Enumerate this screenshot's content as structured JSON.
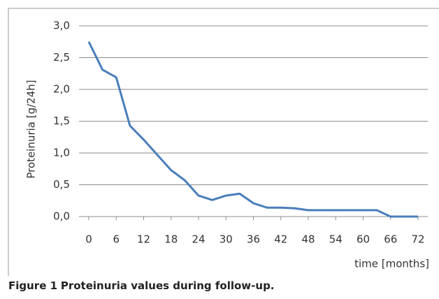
{
  "chart_data": {
    "type": "line",
    "y_label": "Proteinuria [g/24h]",
    "x_label": "time [months]",
    "x": [
      0,
      3,
      6,
      9,
      12,
      15,
      18,
      21,
      24,
      27,
      30,
      33,
      36,
      39,
      42,
      45,
      48,
      51,
      54,
      57,
      60,
      63,
      66,
      69,
      72
    ],
    "series": [
      {
        "name": "Proteinuria",
        "color": "#4a7ebb",
        "values": [
          2.75,
          2.31,
          2.19,
          1.43,
          1.21,
          0.97,
          0.73,
          0.57,
          0.33,
          0.26,
          0.33,
          0.36,
          0.21,
          0.14,
          0.14,
          0.13,
          0.1,
          0.1,
          0.1,
          0.1,
          0.1,
          0.1,
          0,
          0,
          0
        ]
      }
    ],
    "xlim": [
      0,
      72
    ],
    "xticks": [
      0,
      6,
      12,
      18,
      24,
      30,
      36,
      42,
      48,
      54,
      60,
      66,
      72
    ],
    "ylim": [
      0,
      3
    ],
    "yticks": [
      {
        "value": 0,
        "label": "0,0"
      },
      {
        "value": 0.5,
        "label": "0,5"
      },
      {
        "value": 1,
        "label": "1,0"
      },
      {
        "value": 1.5,
        "label": "1,5"
      },
      {
        "value": 2,
        "label": "2,0"
      },
      {
        "value": 2.5,
        "label": "2,5"
      },
      {
        "value": 3,
        "label": "3,0"
      }
    ],
    "grid": true
  },
  "caption": {
    "label": "Figure 1",
    "text": "Proteinuria values during follow-up."
  }
}
